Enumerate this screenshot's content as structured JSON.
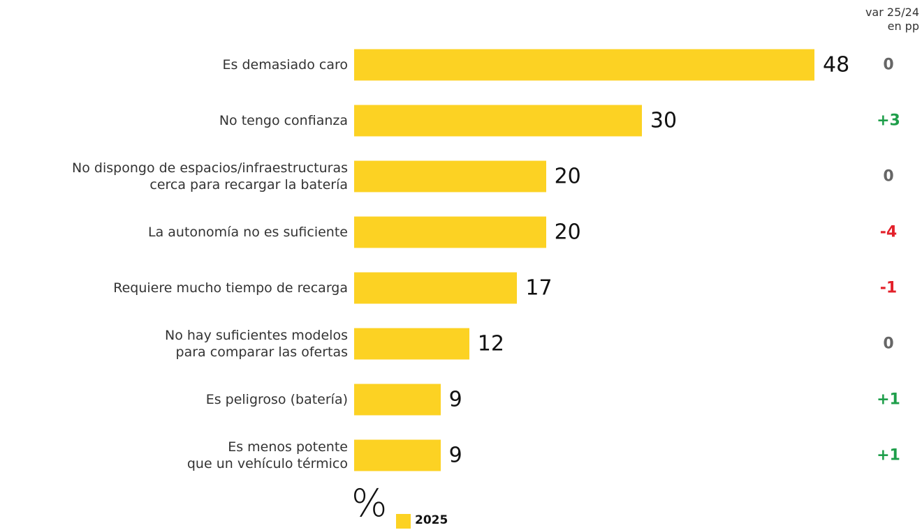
{
  "chart_data": {
    "type": "bar",
    "categories": [
      "Es demasiado caro",
      "No tengo confianza",
      "No dispongo de espacios/infraestructuras\ncerca para recargar la batería",
      "La autonomía no es suficiente",
      "Requiere mucho tiempo de recarga",
      "No hay suficientes modelos\npara comparar las ofertas",
      "Es peligroso (batería)",
      "Es menos potente\nque un vehículo térmico"
    ],
    "series": [
      {
        "name": "2025",
        "color": "#fcd223",
        "values": [
          48,
          30,
          20,
          20,
          17,
          12,
          9,
          9
        ]
      }
    ],
    "unit": "%",
    "variance": {
      "title": "var 25/24\nen pp",
      "values": [
        0,
        3,
        0,
        -4,
        -1,
        0,
        1,
        1
      ],
      "value_labels": [
        "0",
        "+3",
        "0",
        "-4",
        "-1",
        "0",
        "+1",
        "+1"
      ],
      "colors": {
        "positive": "#1e9e4a",
        "negative": "#e3202a",
        "zero": "#666666"
      }
    }
  }
}
